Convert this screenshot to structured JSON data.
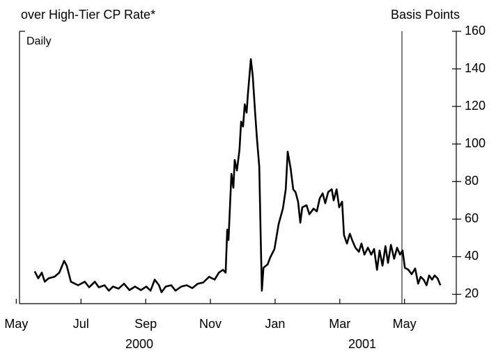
{
  "chart_data": {
    "type": "line",
    "title": "over High-Tier CP Rate*",
    "y_label": "Basis Points",
    "frequency_label": "Daily",
    "year_labels": [
      "2000",
      "2001"
    ],
    "xlim": [
      0.1,
      13.6
    ],
    "ylim": [
      15,
      160
    ],
    "xticks": [
      {
        "value": 0,
        "label": "May"
      },
      {
        "value": 2,
        "label": "Jul"
      },
      {
        "value": 4,
        "label": "Sep"
      },
      {
        "value": 6,
        "label": "Nov"
      },
      {
        "value": 8,
        "label": "Jan"
      },
      {
        "value": 10,
        "label": "Mar"
      },
      {
        "value": 12,
        "label": "May"
      }
    ],
    "yticks": [
      20,
      40,
      60,
      80,
      100,
      120,
      140,
      160
    ],
    "vline_x": 11.92,
    "grid": false,
    "series": [
      {
        "color": "#000000",
        "x": [
          0.57,
          0.68,
          0.79,
          0.88,
          1.0,
          1.18,
          1.33,
          1.48,
          1.56,
          1.69,
          1.91,
          2.12,
          2.25,
          2.43,
          2.55,
          2.73,
          2.86,
          2.99,
          3.16,
          3.33,
          3.5,
          3.67,
          3.85,
          4.02,
          4.15,
          4.28,
          4.41,
          4.49,
          4.62,
          4.79,
          4.92,
          5.1,
          5.27,
          5.44,
          5.61,
          5.78,
          5.96,
          6.13,
          6.26,
          6.39,
          6.47,
          6.52,
          6.56,
          6.65,
          6.71,
          6.75,
          6.82,
          6.9,
          6.95,
          7.01,
          7.06,
          7.12,
          7.16,
          7.25,
          7.31,
          7.38,
          7.44,
          7.51,
          7.55,
          7.59,
          7.64,
          7.77,
          7.85,
          7.98,
          8.11,
          8.24,
          8.33,
          8.39,
          8.48,
          8.56,
          8.63,
          8.71,
          8.78,
          8.84,
          8.97,
          9.06,
          9.19,
          9.29,
          9.38,
          9.47,
          9.55,
          9.64,
          9.75,
          9.81,
          9.9,
          9.98,
          10.07,
          10.13,
          10.22,
          10.31,
          10.39,
          10.48,
          10.59,
          10.67,
          10.76,
          10.87,
          10.97,
          11.06,
          11.15,
          11.23,
          11.32,
          11.41,
          11.49,
          11.58,
          11.68,
          11.77,
          11.86,
          11.94,
          12.01,
          12.12,
          12.22,
          12.33,
          12.42,
          12.5,
          12.59,
          12.68,
          12.76,
          12.85,
          12.93,
          13.02,
          13.11
        ],
        "values": [
          32.2,
          28.5,
          31.5,
          26.7,
          28.5,
          29.3,
          31.5,
          37.8,
          35.2,
          26.7,
          24.8,
          26.7,
          23.7,
          26.7,
          23.7,
          24.8,
          21.9,
          24.1,
          23.0,
          25.6,
          22.2,
          24.1,
          22.2,
          24.1,
          21.9,
          27.8,
          24.8,
          21.1,
          24.1,
          24.8,
          21.9,
          24.1,
          24.8,
          23.3,
          25.6,
          26.3,
          29.3,
          27.8,
          31.5,
          33.0,
          31.5,
          54.4,
          48.9,
          84.1,
          76.7,
          91.5,
          85.9,
          97.0,
          111.9,
          109.3,
          121.1,
          116.7,
          126.7,
          145.2,
          135.9,
          117.4,
          102.6,
          87.8,
          54.4,
          21.9,
          34.1,
          35.9,
          39.6,
          44.1,
          57.4,
          65.6,
          75.9,
          95.9,
          87.0,
          75.9,
          74.4,
          69.3,
          58.1,
          66.3,
          67.4,
          62.6,
          65.6,
          64.1,
          71.1,
          73.7,
          68.5,
          74.4,
          75.9,
          70.0,
          75.9,
          66.3,
          69.3,
          51.5,
          47.0,
          52.2,
          48.5,
          44.8,
          42.6,
          47.0,
          41.1,
          44.8,
          41.1,
          44.1,
          33.0,
          43.3,
          35.2,
          45.6,
          36.7,
          46.3,
          38.9,
          44.8,
          41.1,
          43.3,
          34.1,
          33.0,
          30.7,
          33.7,
          25.6,
          29.3,
          27.8,
          24.8,
          30.0,
          27.8,
          30.0,
          28.5,
          24.8
        ]
      }
    ]
  }
}
